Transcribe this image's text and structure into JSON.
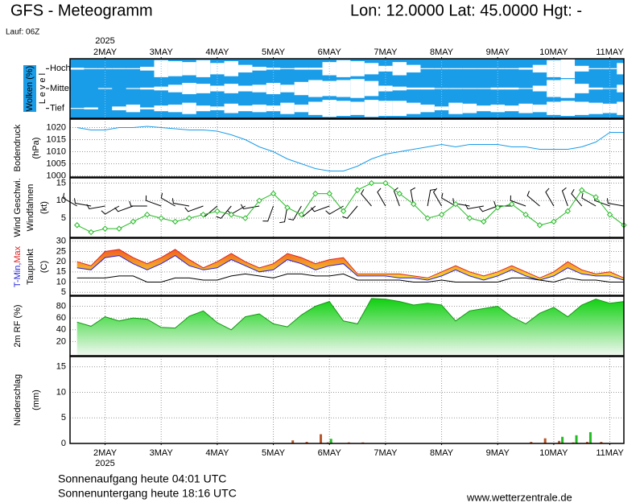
{
  "header": {
    "title": "GFS - Meteogramm",
    "location": "Lon: 12.0000 Lat: 45.0000 Hgt: -",
    "run": "Lauf: 06Z"
  },
  "footer": {
    "sunrise": "Sonnenaufgang heute 04:01 UTC",
    "sunset": "Sonnenuntergang heute 18:16 UTC",
    "source": "www.wetterzentrale.de"
  },
  "chart_data": [
    {
      "type": "heatmap",
      "ylabel": "Wolken (%)",
      "sublabel": "L e v e l",
      "color": "#1a9de9",
      "year": "2025",
      "xlim": [
        -15,
        222
      ],
      "xticks": [
        {
          "value": 0,
          "label": "2MAY"
        },
        {
          "value": 24,
          "label": "3MAY"
        },
        {
          "value": 48,
          "label": "4MAY"
        },
        {
          "value": 72,
          "label": "5MAY"
        },
        {
          "value": 96,
          "label": "6MAY"
        },
        {
          "value": 120,
          "label": "7MAY"
        },
        {
          "value": 144,
          "label": "8MAY"
        },
        {
          "value": 168,
          "label": "9MAY"
        },
        {
          "value": 192,
          "label": "10MAY"
        },
        {
          "value": 216,
          "label": "11MAY"
        }
      ],
      "x": [
        -12,
        -6,
        0,
        6,
        12,
        18,
        24,
        30,
        36,
        42,
        48,
        54,
        60,
        66,
        72,
        78,
        84,
        90,
        96,
        102,
        108,
        114,
        120,
        126,
        132,
        138,
        144,
        150,
        156,
        162,
        168,
        174,
        180,
        186,
        192,
        198,
        204,
        210,
        216,
        222
      ],
      "categories": [
        "Hoch",
        "Mittel",
        "Tief"
      ],
      "series": [
        {
          "values": [
            10,
            5,
            5,
            5,
            5,
            20,
            90,
            80,
            70,
            90,
            60,
            80,
            40,
            20,
            10,
            5,
            10,
            10,
            70,
            90,
            80,
            60,
            30,
            70,
            40,
            5,
            5,
            5,
            5,
            5,
            5,
            5,
            10,
            40,
            90,
            100,
            30,
            5,
            5,
            60
          ]
        },
        {
          "values": [
            0,
            0,
            5,
            0,
            5,
            10,
            20,
            40,
            60,
            50,
            30,
            50,
            30,
            40,
            60,
            40,
            70,
            90,
            80,
            90,
            100,
            80,
            30,
            20,
            10,
            10,
            5,
            5,
            5,
            5,
            10,
            10,
            5,
            30,
            90,
            100,
            50,
            10,
            5,
            40
          ]
        },
        {
          "values": [
            5,
            10,
            0,
            20,
            40,
            10,
            30,
            40,
            60,
            30,
            20,
            50,
            30,
            40,
            30,
            60,
            40,
            70,
            90,
            80,
            70,
            90,
            80,
            80,
            60,
            40,
            20,
            60,
            50,
            30,
            40,
            30,
            50,
            40,
            70,
            80,
            70,
            60,
            50,
            70
          ]
        }
      ]
    },
    {
      "type": "line",
      "ylabel": [
        "Bodendruck",
        "(hPa)"
      ],
      "xlim": [
        -15,
        222
      ],
      "ylim": [
        999.5,
        1023.5
      ],
      "yticks": [
        1000,
        1005,
        1010,
        1015,
        1020
      ],
      "grid": true,
      "x": [
        -12,
        -6,
        0,
        6,
        12,
        18,
        24,
        30,
        36,
        42,
        48,
        54,
        60,
        66,
        72,
        78,
        84,
        90,
        96,
        102,
        108,
        114,
        120,
        126,
        132,
        138,
        144,
        150,
        156,
        162,
        168,
        174,
        180,
        186,
        192,
        198,
        204,
        210,
        216,
        222
      ],
      "series": [
        {
          "color": "#1a9de9",
          "values": [
            1020,
            1019,
            1019,
            1020,
            1020,
            1020.5,
            1020,
            1019.5,
            1019,
            1019,
            1018.5,
            1017,
            1015,
            1012,
            1010,
            1007,
            1005,
            1003,
            1002,
            1002,
            1004,
            1007,
            1009,
            1010,
            1011,
            1012,
            1013,
            1012,
            1013,
            1013,
            1013,
            1012,
            1012,
            1011,
            1011,
            1011,
            1012,
            1014,
            1018,
            1018
          ]
        }
      ]
    },
    {
      "type": "line",
      "ylabel": [
        "(kt)"
      ],
      "xlim": [
        -15,
        222
      ],
      "ylim": [
        -0.5,
        16.5
      ],
      "yticks": [
        5,
        10,
        15
      ],
      "grid": true,
      "x": [
        -12,
        -6,
        0,
        6,
        12,
        18,
        24,
        30,
        36,
        42,
        48,
        54,
        60,
        66,
        72,
        78,
        84,
        90,
        96,
        102,
        108,
        114,
        120,
        126,
        132,
        138,
        144,
        150,
        156,
        162,
        168,
        174,
        180,
        186,
        192,
        198,
        204,
        210,
        216,
        222
      ],
      "series": [
        {
          "name": "Wind Geschwi.",
          "color": "#22bb22",
          "marker": "diamond",
          "values": [
            3,
            1,
            2,
            2,
            4,
            6,
            5,
            4,
            5,
            6,
            7,
            6,
            5,
            10,
            12,
            8,
            6,
            12,
            12,
            7,
            13,
            15,
            15,
            12,
            9,
            5,
            6,
            9,
            5,
            4,
            8,
            9,
            6,
            3,
            4,
            7,
            13,
            11,
            6,
            3
          ]
        }
      ],
      "barbs": {
        "name": "Windfahnen",
        "color": "#000000",
        "values": [
          300,
          280,
          260,
          240,
          250,
          270,
          290,
          300,
          280,
          250,
          230,
          220,
          240,
          260,
          200,
          190,
          210,
          230,
          250,
          240,
          220,
          320,
          330,
          340,
          350,
          10,
          330,
          300,
          280,
          260,
          250,
          270,
          290,
          310,
          330,
          340,
          320,
          300,
          290,
          280
        ]
      }
    },
    {
      "type": "band",
      "ylabel": [
        "(C)"
      ],
      "xlim": [
        -15,
        222
      ],
      "ylim": [
        3.5,
        31.5
      ],
      "yticks": [
        5,
        10,
        15,
        20,
        25,
        30
      ],
      "grid": true,
      "x": [
        -12,
        -6,
        0,
        6,
        12,
        18,
        24,
        30,
        36,
        42,
        48,
        54,
        60,
        66,
        72,
        78,
        84,
        90,
        96,
        102,
        108,
        114,
        120,
        126,
        132,
        138,
        144,
        150,
        156,
        162,
        168,
        174,
        180,
        186,
        192,
        198,
        204,
        210,
        216,
        222
      ],
      "series": [
        {
          "name": "T-Min,",
          "color": "#2222dd",
          "values": [
            17,
            16,
            22,
            23,
            19,
            16,
            19,
            23,
            18,
            16,
            17,
            21,
            18,
            15,
            16,
            21,
            19,
            16,
            18,
            19,
            13,
            13,
            13,
            12,
            12,
            11,
            13,
            16,
            13,
            11,
            13,
            16,
            13,
            11,
            13,
            17,
            14,
            13,
            13,
            11
          ]
        },
        {
          "name": "Max",
          "color": "#e02020",
          "values": [
            20,
            18,
            25,
            26,
            22,
            19,
            22,
            26,
            21,
            17,
            20,
            24,
            20,
            17,
            19,
            24,
            22,
            19,
            21,
            22,
            14,
            14,
            14,
            14,
            13,
            12,
            15,
            18,
            15,
            13,
            15,
            18,
            15,
            12,
            15,
            20,
            16,
            14,
            15,
            12
          ]
        },
        {
          "name": "Taupunkt",
          "color": "#000000",
          "values": [
            12,
            12,
            12,
            13,
            13,
            10,
            10,
            12,
            12,
            11,
            11,
            13,
            14,
            13,
            12,
            14,
            14,
            13,
            13,
            14,
            11,
            11,
            11,
            11,
            10,
            10,
            11,
            10,
            10,
            10,
            10,
            12,
            12,
            11,
            10,
            12,
            11,
            11,
            10,
            10
          ]
        }
      ]
    },
    {
      "type": "area",
      "xlim": [
        -15,
        222
      ],
      "ylim": [
        -4,
        97
      ],
      "yticks": [
        20,
        40,
        60,
        80
      ],
      "grid": true,
      "x": [
        -12,
        -6,
        0,
        6,
        12,
        18,
        24,
        30,
        36,
        42,
        48,
        54,
        60,
        66,
        72,
        78,
        84,
        90,
        96,
        102,
        108,
        114,
        120,
        126,
        132,
        138,
        144,
        150,
        156,
        162,
        168,
        174,
        180,
        186,
        192,
        198,
        204,
        210,
        216,
        222
      ],
      "series": [
        {
          "name": "2m RF (%)",
          "color": "#22bb22",
          "values": [
            53,
            46,
            62,
            55,
            60,
            58,
            44,
            43,
            63,
            72,
            52,
            40,
            62,
            67,
            50,
            45,
            65,
            80,
            88,
            55,
            50,
            93,
            92,
            88,
            82,
            85,
            82,
            55,
            72,
            76,
            80,
            62,
            50,
            68,
            78,
            62,
            82,
            92,
            85,
            88
          ]
        }
      ]
    },
    {
      "type": "bar",
      "ylabel": [
        "Niederschlag",
        "(mm)"
      ],
      "year": "2025",
      "xlim": [
        -15,
        222
      ],
      "ylim": [
        0,
        17
      ],
      "yticks": [
        0,
        5,
        10,
        15
      ],
      "grid": true,
      "xticks": [
        {
          "value": 0,
          "label": "2MAY"
        },
        {
          "value": 24,
          "label": "3MAY"
        },
        {
          "value": 48,
          "label": "4MAY"
        },
        {
          "value": 72,
          "label": "5MAY"
        },
        {
          "value": 96,
          "label": "6MAY"
        },
        {
          "value": 120,
          "label": "7MAY"
        },
        {
          "value": 144,
          "label": "8MAY"
        },
        {
          "value": 168,
          "label": "9MAY"
        },
        {
          "value": 192,
          "label": "10MAY"
        },
        {
          "value": 216,
          "label": "11MAY"
        }
      ],
      "x": [
        81,
        87,
        93,
        96,
        105,
        111,
        183,
        189,
        195,
        201,
        207,
        213
      ],
      "series": [
        {
          "color": "#b8562a",
          "values": [
            0.6,
            0.3,
            1.8,
            0.2,
            0.2,
            0.2,
            0.3,
            1.0,
            0.5,
            0.2,
            0.3,
            0.3
          ]
        },
        {
          "color": "#22bb22",
          "values": [
            0,
            0,
            0,
            0.9,
            0,
            0,
            0,
            0,
            1.3,
            1.6,
            2.2,
            0
          ]
        }
      ]
    }
  ]
}
